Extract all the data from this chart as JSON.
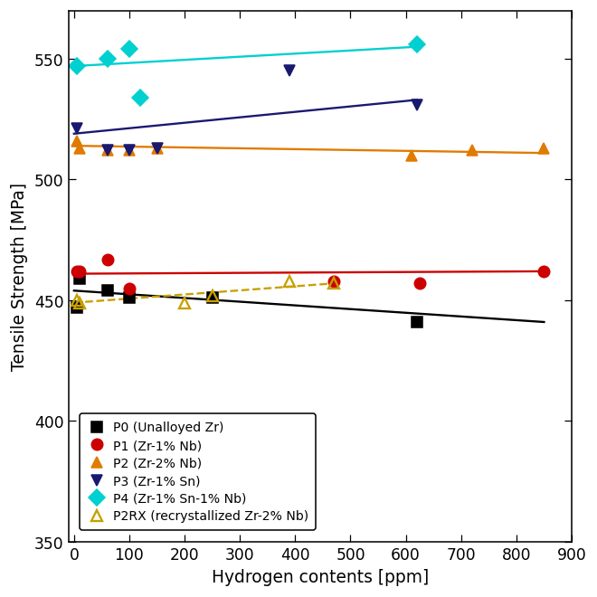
{
  "title": "",
  "xlabel": "Hydrogen contents [ppm]",
  "ylabel": "Tensile Strength [MPa]",
  "xlim": [
    -10,
    900
  ],
  "ylim": [
    350,
    570
  ],
  "yticks": [
    350,
    400,
    450,
    500,
    550
  ],
  "xticks": [
    0,
    100,
    200,
    300,
    400,
    500,
    600,
    700,
    800,
    900
  ],
  "P0": {
    "label": "P0 (Unalloyed Zr)",
    "color": "#000000",
    "marker": "s",
    "linestyle": "-",
    "x": [
      5,
      10,
      60,
      100,
      250,
      620
    ],
    "y": [
      447,
      459,
      454,
      451,
      451,
      441
    ],
    "fit_x": [
      0,
      850
    ],
    "fit_y": [
      454,
      441
    ]
  },
  "P1": {
    "label": "P1 (Zr-1% Nb)",
    "color": "#cc0000",
    "marker": "o",
    "linestyle": "-",
    "x": [
      5,
      10,
      60,
      100,
      470,
      625,
      850
    ],
    "y": [
      462,
      462,
      467,
      455,
      458,
      457,
      462
    ],
    "fit_x": [
      0,
      850
    ],
    "fit_y": [
      461,
      462
    ]
  },
  "P2": {
    "label": "P2 (Zr-2% Nb)",
    "color": "#e07b00",
    "marker": "^",
    "linestyle": "-",
    "x": [
      5,
      10,
      60,
      100,
      150,
      610,
      720,
      850
    ],
    "y": [
      516,
      513,
      512,
      512,
      513,
      510,
      512,
      513
    ],
    "fit_x": [
      0,
      850
    ],
    "fit_y": [
      514,
      511
    ]
  },
  "P3": {
    "label": "P3 (Zr-1% Sn)",
    "color": "#191970",
    "marker": "v",
    "linestyle": "-",
    "x": [
      5,
      60,
      100,
      150,
      390,
      620
    ],
    "y": [
      521,
      512,
      512,
      513,
      545,
      531
    ],
    "fit_x": [
      0,
      620
    ],
    "fit_y": [
      519,
      533
    ]
  },
  "P4": {
    "label": "P4 (Zr-1% Sn-1% Nb)",
    "color": "#00d0d0",
    "marker": "D",
    "linestyle": "-",
    "x": [
      5,
      60,
      100,
      120,
      620
    ],
    "y": [
      547,
      550,
      554,
      534,
      556
    ],
    "fit_x": [
      0,
      620
    ],
    "fit_y": [
      547,
      555
    ]
  },
  "P2RX": {
    "label": "P2RX (recrystallized Zr-2% Nb)",
    "color": "#c8a000",
    "marker": "^",
    "linestyle": "--",
    "x": [
      5,
      10,
      200,
      250,
      390,
      470
    ],
    "y": [
      450,
      449,
      449,
      452,
      458,
      457
    ],
    "fit_x": [
      0,
      470
    ],
    "fit_y": [
      449,
      457
    ]
  }
}
